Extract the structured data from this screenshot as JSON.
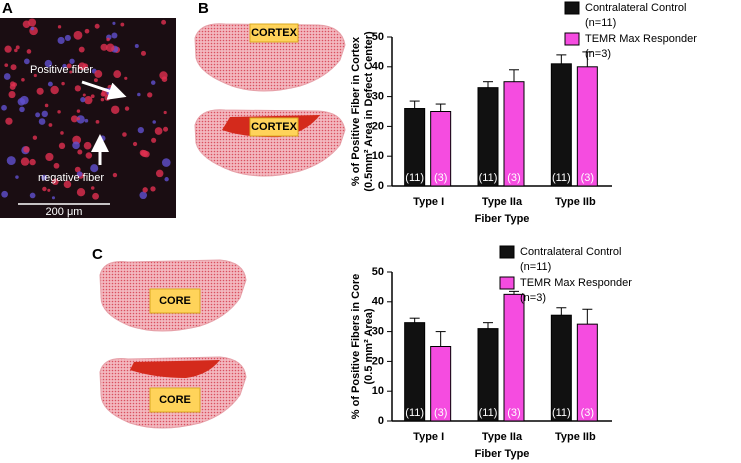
{
  "panel_labels": [
    "A",
    "B",
    "C"
  ],
  "micrograph": {
    "positive_label": "Positive fiber",
    "negative_label": "negative fiber",
    "scale_label": "200 μm"
  },
  "schematic_labels": {
    "cortex": "CORTEX",
    "core": "CORE"
  },
  "chart_data": [
    {
      "type": "bar",
      "ylabel": [
        "% of Positive Fiber in Cortex",
        "(0.5mm² Area in Defect Center)"
      ],
      "xlabel": "Fiber Type",
      "categories": [
        "Type I",
        "Type IIa",
        "Type IIb"
      ],
      "ylim": [
        0,
        50
      ],
      "yticks": [
        0,
        10,
        20,
        30,
        40,
        50
      ],
      "series": [
        {
          "name": "Contralateral Control",
          "n_label": "(n=11)",
          "color": "#111111",
          "values": [
            26,
            33,
            41
          ],
          "errors": [
            2.5,
            2,
            3
          ],
          "count_labels": [
            "(11)",
            "(11)",
            "(11)"
          ]
        },
        {
          "name": "TEMR Max Responder",
          "n_label": "(n=3)",
          "color": "#f54ce0",
          "values": [
            25,
            35,
            40
          ],
          "errors": [
            2.5,
            4,
            5
          ],
          "count_labels": [
            "(3)",
            "(3)",
            "(3)"
          ]
        }
      ]
    },
    {
      "type": "bar",
      "ylabel": [
        "% of Positive Fibers in Core",
        "(0.5 mm² Area)"
      ],
      "xlabel": "Fiber Type",
      "categories": [
        "Type I",
        "Type IIa",
        "Type IIb"
      ],
      "ylim": [
        0,
        50
      ],
      "yticks": [
        0,
        10,
        20,
        30,
        40,
        50
      ],
      "series": [
        {
          "name": "Contralateral Control",
          "n_label": "(n=11)",
          "color": "#111111",
          "values": [
            33,
            31,
            35.5
          ],
          "errors": [
            1.5,
            2,
            2.5
          ],
          "count_labels": [
            "(11)",
            "(11)",
            "(11)"
          ]
        },
        {
          "name": "TEMR Max Responder",
          "n_label": "(n=3)",
          "color": "#f54ce0",
          "values": [
            25,
            42.5,
            32.5
          ],
          "errors": [
            5,
            1,
            5
          ],
          "count_labels": [
            "(3)",
            "(3)",
            "(3)"
          ]
        }
      ]
    }
  ]
}
